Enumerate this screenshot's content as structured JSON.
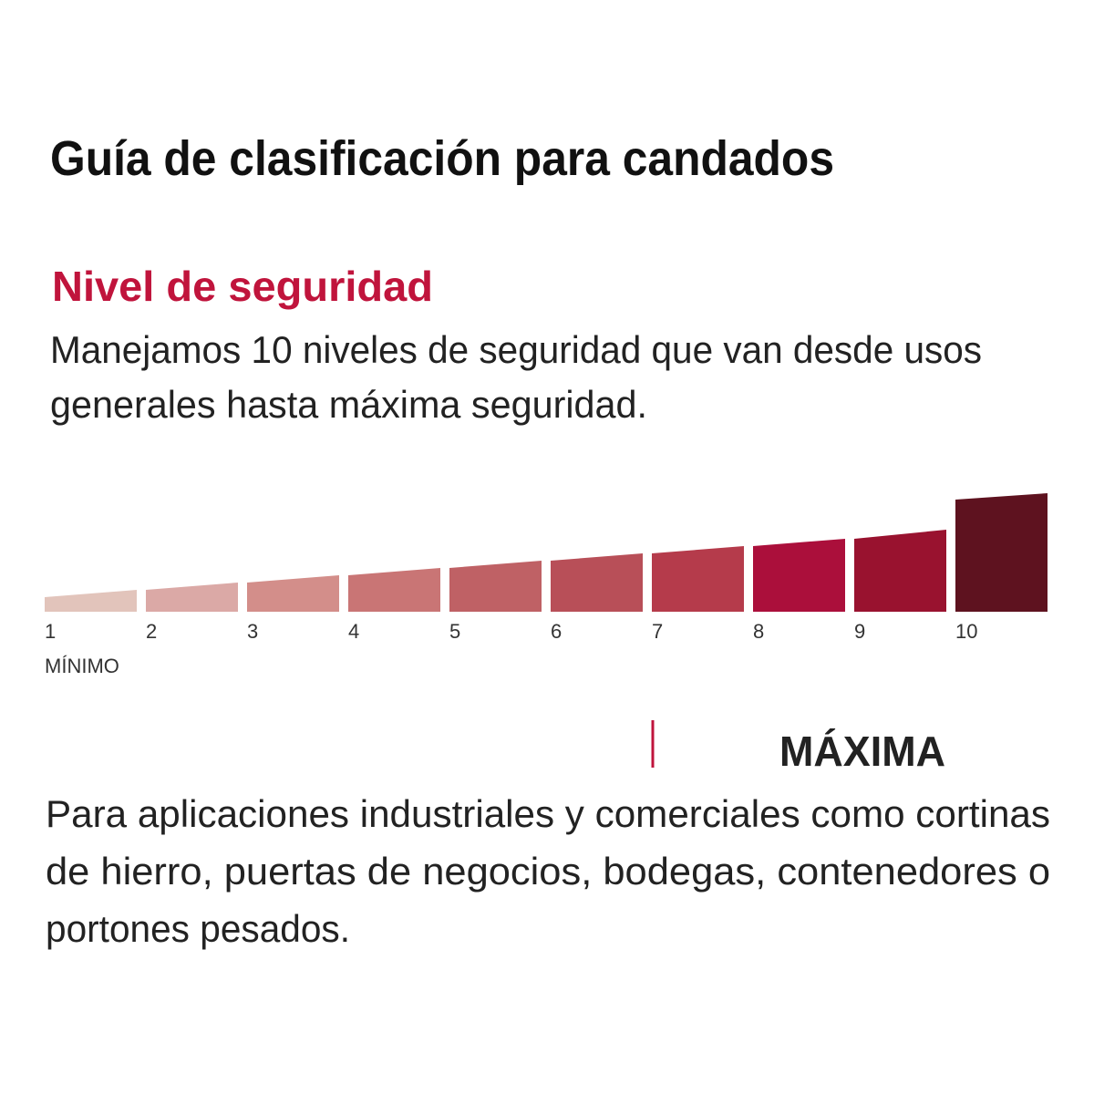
{
  "title": "Guía de clasificación para candados",
  "section": {
    "title": "Nivel de seguridad",
    "description": [
      "Manejamos 10 niveles de seguridad que van desde usos",
      "generales hasta máxima seguridad."
    ]
  },
  "scale": {
    "levels": [
      "1",
      "2",
      "3",
      "4",
      "5",
      "6",
      "7",
      "8",
      "9",
      "10"
    ],
    "min_label": "MÍNIMO"
  },
  "selected": {
    "label": "MÁXIMA",
    "description": [
      "Para aplicaciones industriales y comerciales como cortinas",
      "de hierro, puertas de negocios, bodegas, contenedores o",
      "portones pesados."
    ]
  }
}
